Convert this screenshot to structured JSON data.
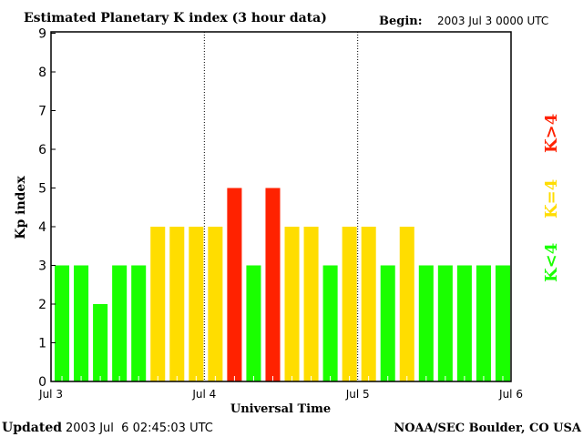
{
  "chart_data": {
    "type": "bar",
    "title": "Estimated Planetary K index (3 hour data)",
    "begin_label": "Begin:",
    "begin_value": "2003 Jul 3 0000 UTC",
    "xlabel": "Universal Time",
    "ylabel": "Kp index",
    "ylim": [
      0,
      9
    ],
    "yticks": [
      "0",
      "1",
      "2",
      "3",
      "4",
      "5",
      "6",
      "7",
      "8",
      "9"
    ],
    "xticks": [
      "Jul 3",
      "Jul 4",
      "Jul 5",
      "Jul 6"
    ],
    "interval_hours": 3,
    "values": [
      3,
      3,
      2,
      3,
      3,
      4,
      4,
      4,
      4,
      5,
      3,
      5,
      4,
      4,
      3,
      4,
      4,
      3,
      4,
      3,
      3,
      3,
      3,
      3
    ],
    "colors": {
      "low": "#1aff00",
      "mid": "#ffdd00",
      "high": "#ff2200"
    },
    "legend": [
      {
        "label": "K<4",
        "color": "#1aff00"
      },
      {
        "label": "K=4",
        "color": "#ffdd00"
      },
      {
        "label": "K>4",
        "color": "#ff2200"
      }
    ],
    "legend_position": "right"
  },
  "footer": {
    "updated_label": "Updated",
    "updated_value": "2003 Jul  6 02:45:03 UTC",
    "source": "NOAA/SEC Boulder, CO USA"
  }
}
